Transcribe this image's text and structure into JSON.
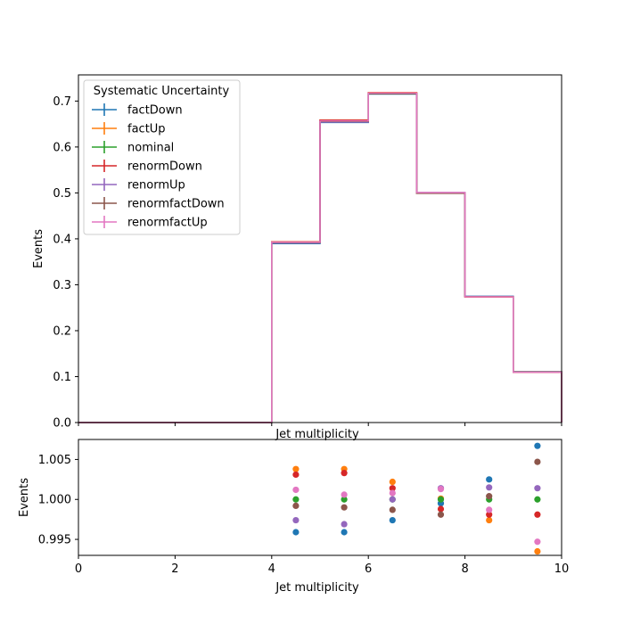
{
  "chart_data": [
    {
      "type": "step",
      "xlabel": "Jet multiplicity",
      "ylabel": "Events",
      "xlim": [
        0,
        10
      ],
      "ylim": [
        0,
        0.757
      ],
      "xticks": [
        0,
        2,
        4,
        6,
        8,
        10
      ],
      "yticks": [
        0.0,
        0.1,
        0.2,
        0.3,
        0.4,
        0.5,
        0.6,
        0.7
      ],
      "ytick_labels": [
        "0.0",
        "0.1",
        "0.2",
        "0.3",
        "0.4",
        "0.5",
        "0.6",
        "0.7"
      ],
      "bin_edges": [
        0,
        1,
        2,
        3,
        4,
        5,
        6,
        7,
        8,
        9,
        10
      ],
      "legend": {
        "title": "Systematic Uncertainty",
        "placement": "upper-left"
      },
      "series": [
        {
          "name": "factDown",
          "color": "#1f77b4",
          "values": [
            0,
            0,
            0,
            0,
            0.3897,
            0.6535,
            0.7152,
            0.4995,
            0.2748,
            0.1107
          ]
        },
        {
          "name": "factUp",
          "color": "#ff7f0e",
          "values": [
            0,
            0,
            0,
            0,
            0.3935,
            0.6588,
            0.7186,
            0.5002,
            0.2734,
            0.1093
          ]
        },
        {
          "name": "nominal",
          "color": "#2ca02c",
          "values": [
            0,
            0,
            0,
            0,
            0.392,
            0.6563,
            0.717,
            0.5,
            0.2741,
            0.11
          ]
        },
        {
          "name": "renormDown",
          "color": "#d62728",
          "values": [
            0,
            0,
            0,
            0,
            0.3932,
            0.6584,
            0.718,
            0.4994,
            0.2736,
            0.1098
          ]
        },
        {
          "name": "renormUp",
          "color": "#9467bd",
          "values": [
            0,
            0,
            0,
            0,
            0.391,
            0.6543,
            0.717,
            0.5007,
            0.2745,
            0.1102
          ]
        },
        {
          "name": "renormfactDown",
          "color": "#8c564b",
          "values": [
            0,
            0,
            0,
            0,
            0.3917,
            0.6557,
            0.7161,
            0.499,
            0.2742,
            0.1105
          ]
        },
        {
          "name": "renormfactUp",
          "color": "#e377c2",
          "values": [
            0,
            0,
            0,
            0,
            0.3925,
            0.6567,
            0.7176,
            0.5007,
            0.2737,
            0.1094
          ]
        }
      ]
    },
    {
      "type": "scatter",
      "xlabel": "Jet multiplicity",
      "ylabel": "Events",
      "xlim": [
        0,
        10
      ],
      "ylim": [
        0.993,
        1.0075
      ],
      "xticks": [
        0,
        2,
        4,
        6,
        8,
        10
      ],
      "yticks": [
        0.995,
        1.0,
        1.005
      ],
      "ytick_labels": [
        "0.995",
        "1.000",
        "1.005"
      ],
      "x": [
        4.5,
        5.5,
        6.5,
        7.5,
        8.5,
        9.5
      ],
      "series": [
        {
          "name": "factDown",
          "color": "#1f77b4",
          "values": [
            0.9959,
            0.9959,
            0.9974,
            0.9995,
            1.0025,
            1.0067
          ]
        },
        {
          "name": "factUp",
          "color": "#ff7f0e",
          "values": [
            1.0038,
            1.0038,
            1.0022,
            1.0001,
            0.9974,
            0.9935
          ]
        },
        {
          "name": "nominal",
          "color": "#2ca02c",
          "values": [
            1.0,
            1.0,
            1.0,
            1.0,
            1.0,
            1.0
          ]
        },
        {
          "name": "renormDown",
          "color": "#d62728",
          "values": [
            1.0031,
            1.0033,
            1.0014,
            0.9988,
            0.9981,
            0.9981
          ]
        },
        {
          "name": "renormUp",
          "color": "#9467bd",
          "values": [
            0.9974,
            0.9969,
            1.0,
            1.0014,
            1.0015,
            1.0014
          ]
        },
        {
          "name": "renormfactDown",
          "color": "#8c564b",
          "values": [
            0.9992,
            0.999,
            0.9987,
            0.9981,
            1.0004,
            1.0047
          ]
        },
        {
          "name": "renormfactUp",
          "color": "#e377c2",
          "values": [
            1.0012,
            1.0006,
            1.0008,
            1.0013,
            0.9987,
            0.9947
          ]
        }
      ]
    }
  ]
}
